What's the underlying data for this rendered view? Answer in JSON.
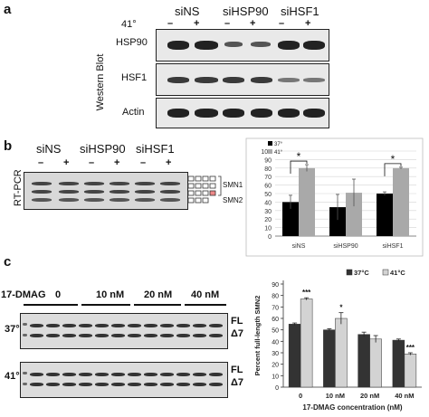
{
  "panel_a": {
    "label": "a",
    "temp_label": "41°",
    "groups": [
      "siNS",
      "siHSP90",
      "siHSF1"
    ],
    "lane_signs": [
      "–",
      "+",
      "–",
      "+",
      "–",
      "+"
    ],
    "rows": [
      "HSP90",
      "HSF1",
      "Actin"
    ],
    "side_label": "Western Blot"
  },
  "panel_b": {
    "label": "b",
    "groups": [
      "siNS",
      "siHSP90",
      "siHSF1"
    ],
    "lane_signs": [
      "–",
      "+",
      "–",
      "+",
      "–",
      "+"
    ],
    "side_label": "RT-PCR",
    "exon_labels": [
      "SMN1",
      "SMN2"
    ],
    "significance": [
      "*",
      "*"
    ]
  },
  "panel_c": {
    "label": "c",
    "drug_label": "17-DMAG",
    "concentrations": [
      "0",
      "10 nM",
      "20 nM",
      "40 nM"
    ],
    "row_temps": [
      "37°",
      "41°"
    ],
    "band_labels": [
      "FL",
      "Δ7"
    ],
    "significance": [
      "***",
      "*",
      "***"
    ]
  },
  "chart_data": [
    {
      "type": "bar",
      "categories": [
        "siNS",
        "siHSP90",
        "siHSF1"
      ],
      "series": [
        {
          "name": "37°",
          "values": [
            40,
            34,
            50
          ],
          "errors": [
            8,
            15,
            2
          ],
          "color": "#000000"
        },
        {
          "name": "41°",
          "values": [
            80,
            51,
            80
          ],
          "errors": [
            4,
            16,
            1
          ],
          "color": "#a9a9a9"
        }
      ],
      "legend": [
        "37°",
        "41°"
      ],
      "ylim": [
        0,
        100
      ],
      "yticks": [
        0,
        10,
        20,
        30,
        40,
        50,
        60,
        70,
        80,
        90,
        100
      ],
      "grid": true,
      "legend_position": "top-left"
    },
    {
      "type": "bar",
      "categories": [
        "0",
        "10 nM",
        "20 nM",
        "40 nM"
      ],
      "series": [
        {
          "name": "37°C",
          "values": [
            55,
            50,
            46,
            41
          ],
          "errors": [
            1,
            1,
            2,
            1
          ],
          "color": "#333333"
        },
        {
          "name": "41°C",
          "values": [
            77,
            60,
            42,
            29
          ],
          "errors": [
            1,
            5,
            3,
            1
          ],
          "color": "#d3d3d3"
        }
      ],
      "legend": [
        "37°C",
        "41°C"
      ],
      "xlabel": "17-DMAG  concentration (nM)",
      "ylabel": "Percent full-length SMN2",
      "ylim": [
        0,
        90
      ],
      "yticks": [
        0,
        10,
        20,
        30,
        40,
        50,
        60,
        70,
        80,
        90
      ],
      "grid": false,
      "legend_position": "top-right"
    }
  ]
}
